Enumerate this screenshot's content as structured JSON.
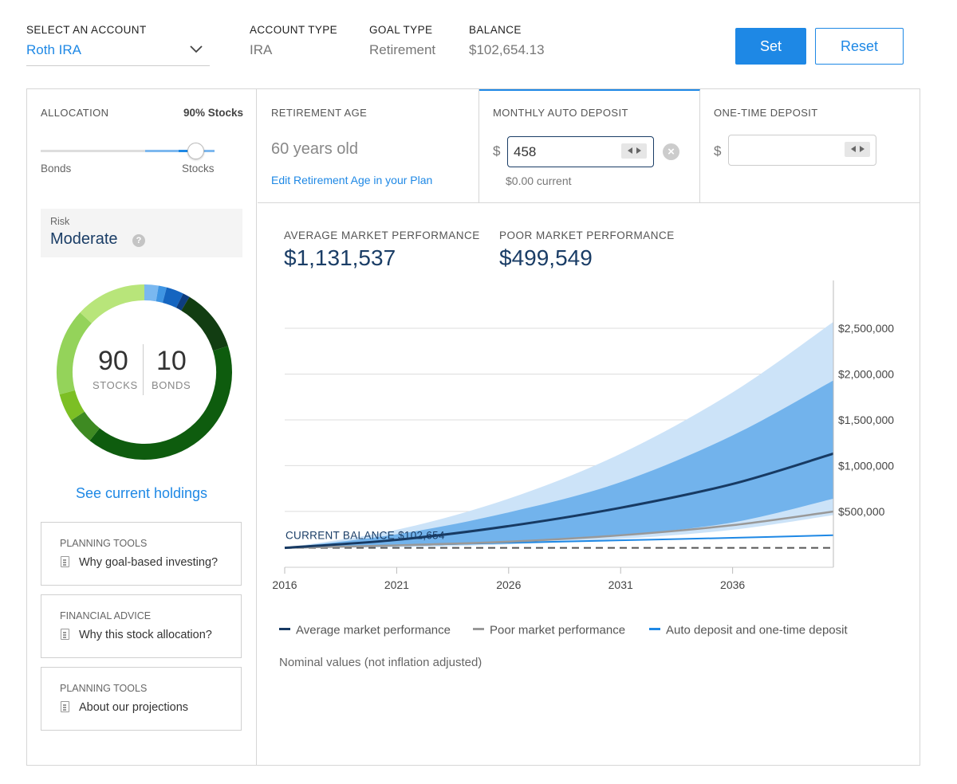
{
  "header": {
    "select_account_label": "SELECT AN ACCOUNT",
    "account_value": "Roth IRA",
    "account_type_label": "ACCOUNT TYPE",
    "account_type_value": "IRA",
    "goal_type_label": "GOAL TYPE",
    "goal_type_value": "Retirement",
    "balance_label": "BALANCE",
    "balance_value": "$102,654.13",
    "set_label": "Set",
    "reset_label": "Reset"
  },
  "sidebar": {
    "allocation_label": "ALLOCATION",
    "allocation_value": "90% Stocks",
    "slider_level": 0.9,
    "bonds_label": "Bonds",
    "stocks_label": "Stocks",
    "risk_label": "Risk",
    "risk_value": "Moderate",
    "help_glyph": "?",
    "donut": {
      "stocks_value": "90",
      "stocks_label": "STOCKS",
      "bonds_value": "10",
      "bonds_label": "BONDS",
      "segments": [
        {
          "color": "#7ab8f0",
          "value": 2.6
        },
        {
          "color": "#3f95e3",
          "value": 1.5
        },
        {
          "color": "#1565c0",
          "value": 3.2
        },
        {
          "color": "#0d3d80",
          "value": 1.3
        },
        {
          "color": "#123d12",
          "value": 11.6
        },
        {
          "color": "#0e5c0e",
          "value": 40.5
        },
        {
          "color": "#3e8a22",
          "value": 5.0
        },
        {
          "color": "#7cbf24",
          "value": 5.2
        },
        {
          "color": "#94d35a",
          "value": 16.0
        },
        {
          "color": "#b8e57a",
          "value": 13.1
        }
      ]
    },
    "see_holdings": "See current holdings",
    "tools": [
      {
        "category": "PLANNING TOOLS",
        "title": "Why goal-based investing?"
      },
      {
        "category": "FINANCIAL ADVICE",
        "title": "Why this stock allocation?"
      },
      {
        "category": "PLANNING TOOLS",
        "title": "About our projections"
      }
    ]
  },
  "inputs": {
    "retirement_age_label": "RETIREMENT AGE",
    "retirement_age_value": "60 years old",
    "edit_retirement_link": "Edit Retirement Age in your Plan",
    "monthly_label": "MONTHLY AUTO DEPOSIT",
    "currency": "$",
    "monthly_value": "458",
    "monthly_current": "$0.00 current",
    "onetime_label": "ONE-TIME DEPOSIT",
    "onetime_value": ""
  },
  "summary": {
    "avg_label": "AVERAGE MARKET PERFORMANCE",
    "avg_value": "$1,131,537",
    "poor_label": "POOR MARKET PERFORMANCE",
    "poor_value": "$499,549"
  },
  "chart_data": {
    "type": "area",
    "x_ticks": [
      "2016",
      "2021",
      "2026",
      "2031",
      "2036"
    ],
    "x_range": [
      2016,
      2040.5
    ],
    "y_ticks": [
      "$500,000",
      "$1,000,000",
      "$1,500,000",
      "$2,000,000",
      "$2,500,000"
    ],
    "y_tick_values": [
      500000,
      1000000,
      1500000,
      2000000,
      2500000
    ],
    "y_range": [
      -40000,
      2900000
    ],
    "current_balance_label": "CURRENT BALANCE $102,654",
    "current_balance_value": 102654,
    "colors": {
      "outer_band": "#cce3f8",
      "inner_band": "#72b3ec",
      "average": "#173a63",
      "poor": "#999999",
      "deposit": "#1e88e5",
      "baseline": "#555555",
      "grid": "#dddddd"
    },
    "series": [
      {
        "name": "Average market performance",
        "x": [
          2016,
          2021,
          2026,
          2031,
          2036,
          2040.5
        ],
        "values": [
          102654,
          190000,
          340000,
          540000,
          800000,
          1131537
        ]
      },
      {
        "name": "Poor market performance",
        "x": [
          2016,
          2021,
          2026,
          2031,
          2036,
          2040.5
        ],
        "values": [
          102654,
          130000,
          170000,
          240000,
          350000,
          499549
        ]
      },
      {
        "name": "Auto deposit and one-time deposit",
        "x": [
          2016,
          2021,
          2026,
          2031,
          2036,
          2040.5
        ],
        "values": [
          102654,
          130000,
          158000,
          185000,
          212000,
          240000
        ]
      }
    ],
    "bands": {
      "x": [
        2016,
        2021,
        2026,
        2031,
        2036,
        2040.5
      ],
      "outer_upper": [
        102654,
        300000,
        640000,
        1130000,
        1800000,
        2570000
      ],
      "inner_upper": [
        102654,
        250000,
        490000,
        820000,
        1330000,
        1930000
      ],
      "inner_lower": [
        102654,
        120000,
        160000,
        240000,
        380000,
        640000
      ],
      "outer_lower": [
        102654,
        110000,
        140000,
        200000,
        300000,
        460000
      ]
    },
    "legend": [
      {
        "label": "Average market performance",
        "color": "#173a63"
      },
      {
        "label": "Poor market performance",
        "color": "#999999"
      },
      {
        "label": "Auto deposit and one-time deposit",
        "color": "#1e88e5"
      }
    ],
    "note": "Nominal values (not inflation adjusted)"
  }
}
